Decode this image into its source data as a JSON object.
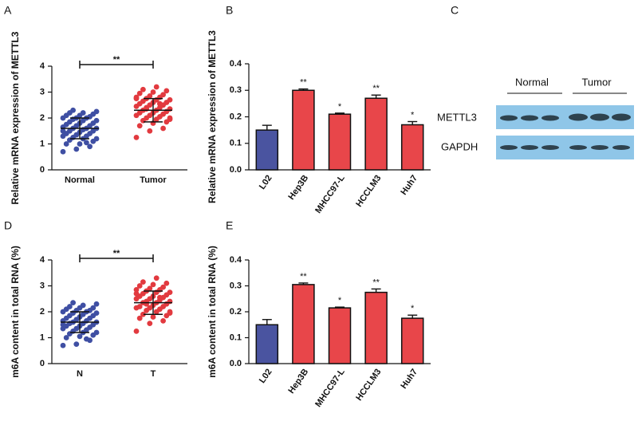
{
  "chart_data": [
    {
      "type": "strip",
      "panel": "A",
      "ylabel": "Relative mRNA expression of METTL3",
      "categories": [
        "Normal",
        "Tumor"
      ],
      "groups": [
        {
          "color": "#3f4fa3",
          "mean": 1.6,
          "sd": 0.4,
          "values": [
            0.7,
            0.8,
            0.9,
            1.0,
            1.0,
            1.1,
            1.15,
            1.2,
            1.2,
            1.25,
            1.3,
            1.3,
            1.35,
            1.4,
            1.4,
            1.45,
            1.5,
            1.5,
            1.55,
            1.6,
            1.6,
            1.6,
            1.65,
            1.7,
            1.7,
            1.75,
            1.8,
            1.8,
            1.85,
            1.9,
            1.9,
            1.95,
            2.0,
            2.0,
            2.0,
            2.05,
            2.1,
            2.1,
            2.15,
            2.2,
            2.2,
            2.25,
            2.3,
            1.05,
            1.5
          ]
        },
        {
          "color": "#e23a3f",
          "mean": 2.3,
          "sd": 0.45,
          "values": [
            1.25,
            1.5,
            1.6,
            1.7,
            1.8,
            1.85,
            1.9,
            1.95,
            2.0,
            2.0,
            2.05,
            2.1,
            2.1,
            2.15,
            2.2,
            2.2,
            2.25,
            2.3,
            2.3,
            2.35,
            2.4,
            2.4,
            2.45,
            2.5,
            2.5,
            2.55,
            2.6,
            2.6,
            2.65,
            2.7,
            2.7,
            2.75,
            2.8,
            2.8,
            2.85,
            2.9,
            2.95,
            3.0,
            3.05,
            3.1,
            3.2,
            1.95,
            2.35,
            2.55,
            2.75
          ]
        }
      ],
      "significance": "**",
      "ylim": [
        0,
        4
      ],
      "yticks": [
        0,
        1,
        2,
        3,
        4
      ]
    },
    {
      "type": "bar",
      "panel": "B",
      "ylabel": "Relative mRNA expression of METTL3",
      "categories": [
        "L02",
        "Hep3B",
        "MHCC97-L",
        "HCCLM3",
        "Huh7"
      ],
      "values": [
        0.15,
        0.3,
        0.21,
        0.27,
        0.17
      ],
      "errors": [
        0.018,
        0.005,
        0.004,
        0.012,
        0.012
      ],
      "colors": [
        "#4a54a0",
        "#e8464a",
        "#e8464a",
        "#e8464a",
        "#e8464a"
      ],
      "significance": [
        null,
        "**",
        "*",
        "**",
        "*"
      ],
      "ylim": [
        0,
        0.4
      ],
      "yticks": [
        {
          "value": 0,
          "label": "0.0"
        },
        0.1,
        0.2,
        0.3,
        0.4
      ]
    },
    {
      "type": "strip",
      "panel": "D",
      "ylabel": "m6A content in total RNA (%)",
      "categories": [
        "N",
        "T"
      ],
      "groups": [
        {
          "color": "#3f4fa3",
          "mean": 1.6,
          "sd": 0.4,
          "values": [
            0.7,
            0.75,
            0.9,
            1.0,
            1.05,
            1.1,
            1.15,
            1.2,
            1.2,
            1.25,
            1.3,
            1.35,
            1.35,
            1.4,
            1.45,
            1.45,
            1.5,
            1.55,
            1.55,
            1.6,
            1.6,
            1.65,
            1.65,
            1.7,
            1.75,
            1.75,
            1.8,
            1.85,
            1.85,
            1.9,
            1.95,
            1.95,
            2.0,
            2.0,
            2.05,
            2.05,
            2.1,
            2.15,
            2.15,
            2.2,
            2.25,
            2.3,
            2.35,
            0.95,
            1.5
          ]
        },
        {
          "color": "#e23a3f",
          "mean": 2.35,
          "sd": 0.45,
          "values": [
            1.25,
            1.55,
            1.65,
            1.75,
            1.8,
            1.85,
            1.9,
            2.0,
            2.0,
            2.05,
            2.1,
            2.15,
            2.15,
            2.2,
            2.2,
            2.25,
            2.3,
            2.35,
            2.35,
            2.4,
            2.4,
            2.45,
            2.5,
            2.5,
            2.55,
            2.6,
            2.6,
            2.65,
            2.7,
            2.75,
            2.75,
            2.8,
            2.85,
            2.85,
            2.9,
            2.95,
            3.0,
            3.05,
            3.1,
            3.15,
            3.3,
            1.95,
            2.3,
            2.55,
            2.7
          ]
        }
      ],
      "significance": "**",
      "ylim": [
        0,
        4
      ],
      "yticks": [
        0,
        1,
        2,
        3,
        4
      ]
    },
    {
      "type": "bar",
      "panel": "E",
      "ylabel": "m6A content in total RNA (%)",
      "categories": [
        "L02",
        "Hep3B",
        "MHCC97-L",
        "HCCLM3",
        "Huh7"
      ],
      "values": [
        0.15,
        0.305,
        0.215,
        0.275,
        0.175
      ],
      "errors": [
        0.02,
        0.006,
        0.003,
        0.013,
        0.012
      ],
      "colors": [
        "#4a54a0",
        "#e8464a",
        "#e8464a",
        "#e8464a",
        "#e8464a"
      ],
      "significance": [
        null,
        "**",
        "*",
        "**",
        "*"
      ],
      "ylim": [
        0,
        0.4
      ],
      "yticks": [
        {
          "value": 0,
          "label": "0.0"
        },
        0.1,
        0.2,
        0.3,
        0.4
      ]
    }
  ],
  "blot": {
    "panel": "C",
    "groups": [
      "Normal",
      "Tumor"
    ],
    "rows": [
      "METTL3",
      "GAPDH"
    ]
  }
}
